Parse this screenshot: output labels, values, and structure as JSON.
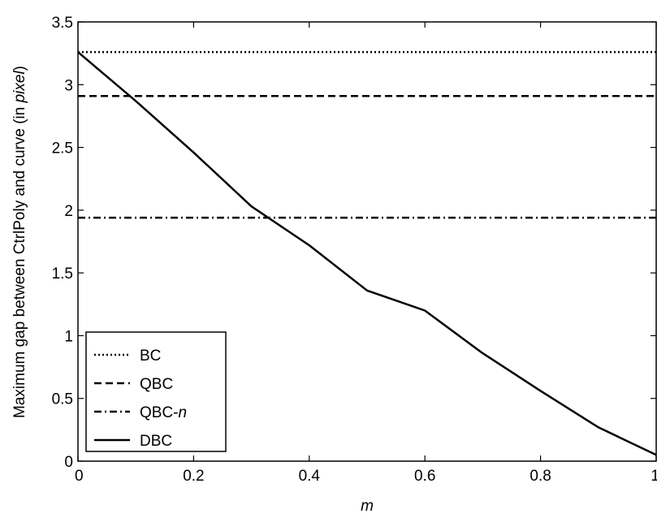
{
  "chart_data": {
    "type": "line",
    "xlabel": "m",
    "ylabel": "Maximum gap between CtrlPoly and curve (in pixel)",
    "ylabel_parts": {
      "before": "Maximum gap between CtrlPoly and curve (in ",
      "italic": "pixel",
      "after": ")"
    },
    "xlim": [
      0,
      1
    ],
    "ylim": [
      0,
      3.5
    ],
    "xticks": [
      0,
      0.2,
      0.4,
      0.6,
      0.8,
      1
    ],
    "yticks": [
      0,
      0.5,
      1,
      1.5,
      2,
      2.5,
      3,
      3.5
    ],
    "xtick_labels": [
      "0",
      "0.2",
      "0.4",
      "0.6",
      "0.8",
      "1"
    ],
    "ytick_labels": [
      "0",
      "0.5",
      "1",
      "1.5",
      "2",
      "2.5",
      "3",
      "3.5"
    ],
    "grid": false,
    "legend_position": "bottom-left",
    "series": [
      {
        "name": "BC",
        "style": "dotted",
        "color": "#000000",
        "x": [
          0,
          1
        ],
        "y": [
          3.26,
          3.26
        ]
      },
      {
        "name": "QBC",
        "style": "dashed",
        "color": "#000000",
        "x": [
          0,
          1
        ],
        "y": [
          2.91,
          2.91
        ]
      },
      {
        "name": "QBC-n",
        "name_plain": "QBC-",
        "name_italic": "n",
        "style": "dashdot",
        "color": "#000000",
        "x": [
          0,
          1
        ],
        "y": [
          1.94,
          1.94
        ]
      },
      {
        "name": "DBC",
        "style": "solid",
        "color": "#000000",
        "x": [
          0,
          0.1,
          0.2,
          0.3,
          0.4,
          0.5,
          0.6,
          0.7,
          0.8,
          0.9,
          1.0
        ],
        "y": [
          3.26,
          2.87,
          2.46,
          2.03,
          1.72,
          1.36,
          1.2,
          0.86,
          0.56,
          0.27,
          0.05
        ]
      }
    ]
  }
}
